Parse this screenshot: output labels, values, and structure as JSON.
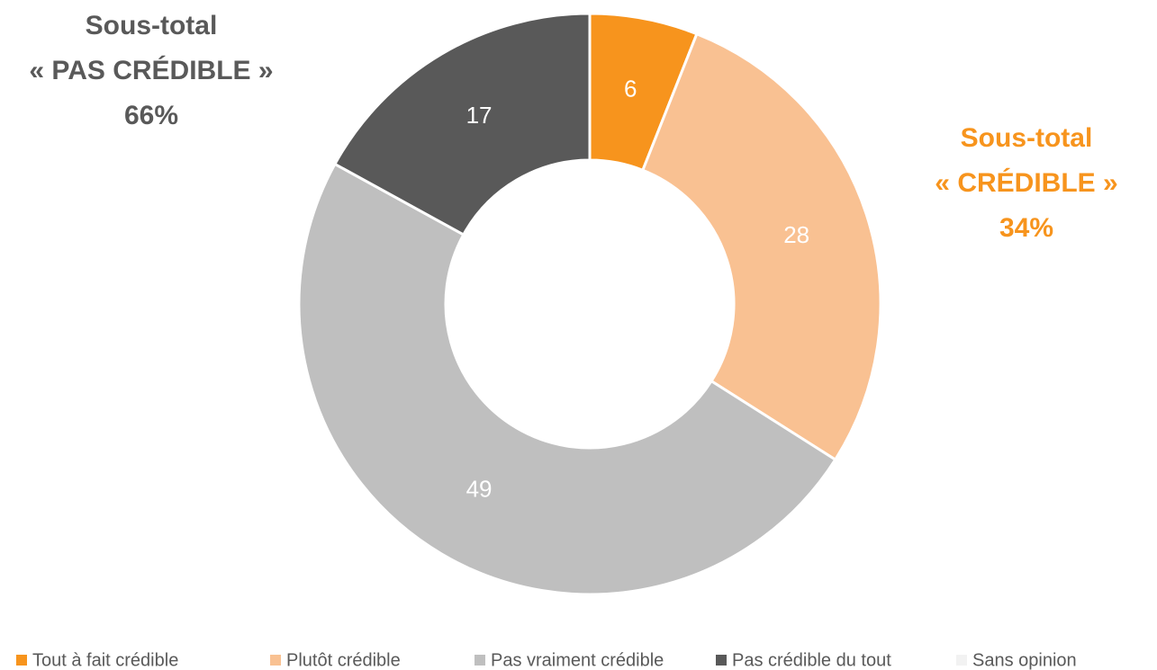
{
  "chart_data": {
    "type": "donut",
    "categories": [
      "Tout à fait crédible",
      "Plutôt crédible",
      "Pas vraiment crédible",
      "Pas crédible du tout",
      "Sans opinion"
    ],
    "values": [
      6,
      28,
      49,
      17,
      0
    ],
    "colors": [
      "#F7941D",
      "#F9C192",
      "#BFBFBF",
      "#595959",
      "#F2F2F2"
    ],
    "label_colors": [
      "#FFFFFF",
      "#FFFFFF",
      "#FFFFFF",
      "#FFFFFF",
      "#FFFFFF"
    ],
    "legend": "bottom",
    "annotations": [
      {
        "lines": [
          "Sous-total",
          "« PAS CRÉDIBLE »",
          "66%"
        ],
        "color": "#595959"
      },
      {
        "lines": [
          "Sous-total",
          "« CRÉDIBLE »",
          "34%"
        ],
        "color": "#F7941D"
      }
    ]
  }
}
